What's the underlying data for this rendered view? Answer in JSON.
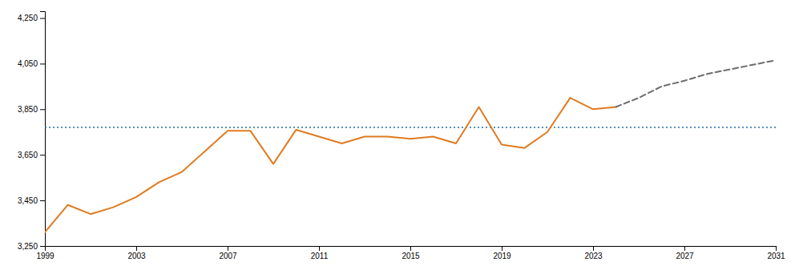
{
  "chart_data": {
    "type": "line",
    "series": [
      {
        "x": [
          1999,
          2000,
          2001,
          2002,
          2003,
          2004,
          2005,
          2006,
          2007,
          2008,
          2009,
          2010,
          2011,
          2012,
          2013,
          2014,
          2015,
          2016,
          2017,
          2018,
          2019,
          2020,
          2021,
          2022,
          2023,
          2024
        ],
        "values": [
          3310,
          3430,
          3390,
          3420,
          3465,
          3530,
          3575,
          3665,
          3755,
          3755,
          3610,
          3760,
          3730,
          3700,
          3730,
          3730,
          3720,
          3730,
          3700,
          3860,
          3695,
          3680,
          3750,
          3900,
          3850,
          3860
        ],
        "color": "#e07b20",
        "line_style": "solid"
      },
      {
        "x": [
          2024,
          2025,
          2026,
          2027,
          2028,
          2029,
          2030,
          2031
        ],
        "values": [
          3860,
          3900,
          3950,
          3975,
          4005,
          4025,
          4045,
          4065
        ],
        "color": "#6d6d6d",
        "line_style": "dashed"
      }
    ],
    "hlines": [
      {
        "value": 3770,
        "color": "#1f6fa3",
        "line_style": "dotted"
      }
    ],
    "xlim": [
      1999,
      2031
    ],
    "xticks": [
      1999,
      2003,
      2007,
      2011,
      2015,
      2019,
      2023,
      2027,
      2031
    ],
    "ylim": [
      3250,
      4280
    ],
    "yticks": [
      {
        "value": 3250,
        "label": "3,250"
      },
      {
        "value": 3450,
        "label": "3,450"
      },
      {
        "value": 3650,
        "label": "3,650"
      },
      {
        "value": 3850,
        "label": "3,850"
      },
      {
        "value": 4050,
        "label": "4,050"
      },
      {
        "value": 4250,
        "label": "4,250"
      }
    ],
    "grid": false
  }
}
